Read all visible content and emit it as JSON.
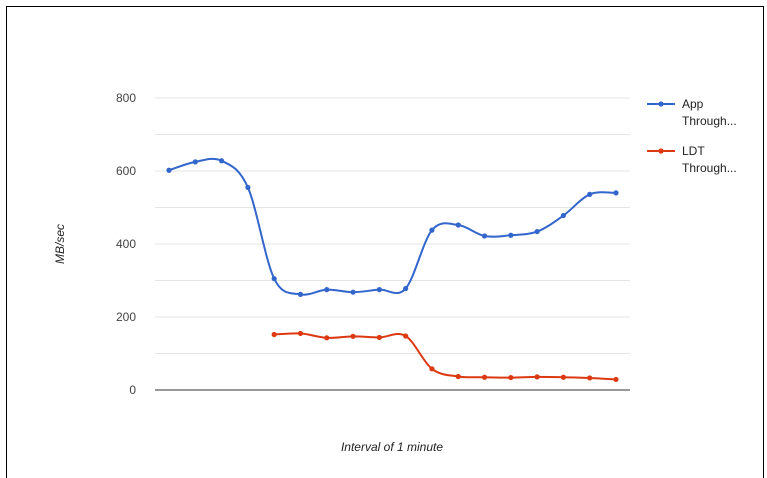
{
  "chart_data": {
    "type": "line",
    "title": "",
    "xlabel": "Interval of 1 minute",
    "ylabel": "MB/sec",
    "ylim": [
      0,
      800
    ],
    "yticks": [
      0,
      200,
      400,
      600,
      800
    ],
    "grid": true,
    "legend_position": "right",
    "x": [
      1,
      2,
      3,
      4,
      5,
      6,
      7,
      8,
      9,
      10,
      11,
      12,
      13,
      14,
      15,
      16,
      17,
      18
    ],
    "series": [
      {
        "name": "App Through...",
        "name_lines": [
          "App",
          "Through..."
        ],
        "color": "#3366cc",
        "values": [
          602,
          625,
          628,
          555,
          305,
          262,
          275,
          268,
          275,
          278,
          438,
          452,
          422,
          424,
          434,
          478,
          536,
          540
        ]
      },
      {
        "name": "LDT Through...",
        "name_lines": [
          "LDT",
          "Through..."
        ],
        "color": "#dc3912",
        "values": [
          null,
          null,
          null,
          null,
          152,
          155,
          143,
          147,
          144,
          148,
          58,
          37,
          35,
          34,
          36,
          35,
          33,
          29
        ]
      }
    ]
  }
}
